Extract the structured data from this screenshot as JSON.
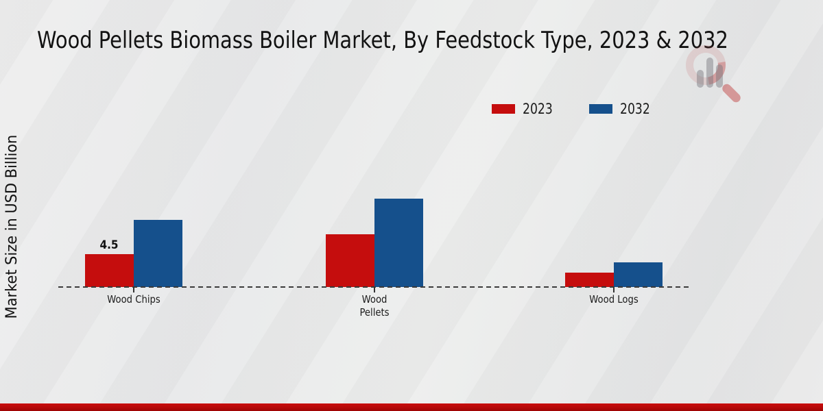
{
  "title": "Wood Pellets Biomass Boiler Market, By Feedstock Type, 2023 & 2032",
  "watermark_icon": "magnifier-bar-chart-logo",
  "accent_colors": {
    "footer_red": "#b40808"
  },
  "chart_data": {
    "type": "bar",
    "title": "Wood Pellets Biomass Boiler Market, By Feedstock Type, 2023 & 2032",
    "categories": [
      "Wood Chips",
      "Wood Pellets",
      "Wood Logs"
    ],
    "tick_labels_display": [
      "Wood Chips",
      "Wood\nPellets",
      "Wood Logs"
    ],
    "series": [
      {
        "name": "2023",
        "color": "#c50d0d",
        "values": [
          4.5,
          7.2,
          2.0
        ]
      },
      {
        "name": "2032",
        "color": "#15508c",
        "values": [
          9.2,
          12.1,
          3.4
        ]
      }
    ],
    "xlabel": "",
    "ylabel": "Market Size in USD Billion",
    "ylim": [
      0,
      14
    ],
    "grid": false,
    "y_axis_ticks_shown": false,
    "baseline_style": "dashed",
    "legend_position": "upper-right",
    "shown_value_labels": [
      {
        "series": "2023",
        "category": "Wood Chips",
        "text": "4.5"
      }
    ]
  }
}
